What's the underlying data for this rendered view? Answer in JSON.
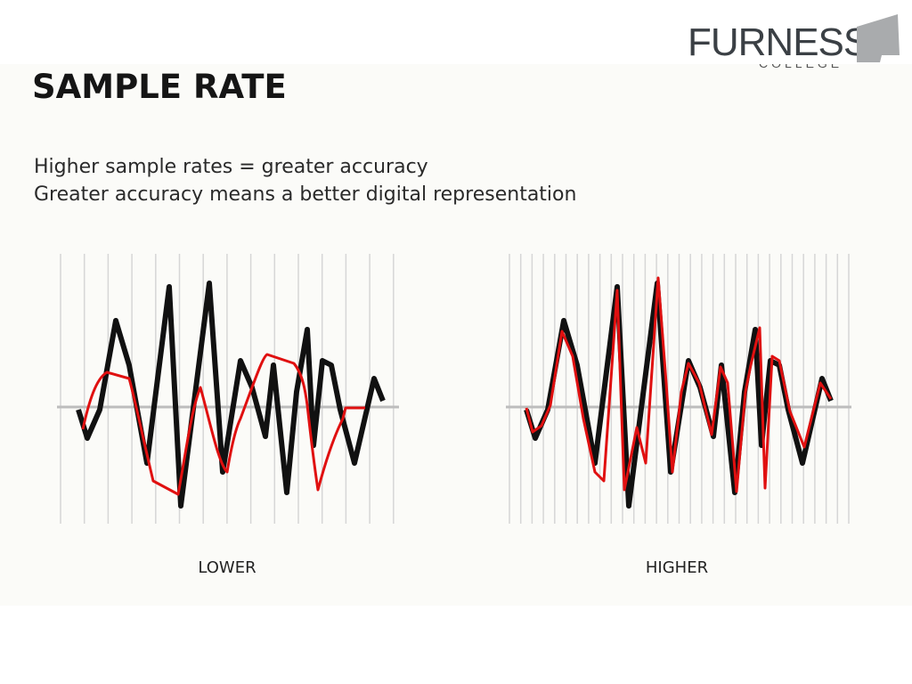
{
  "logo": {
    "name": "FURNESS",
    "subtitle": "COLLEGE"
  },
  "title": "SAMPLE RATE",
  "body": [
    "Higher sample rates = greater accuracy",
    "Greater accuracy means a better digital representation"
  ],
  "charts": [
    {
      "label": "LOWER"
    },
    {
      "label": "HIGHER"
    }
  ]
}
